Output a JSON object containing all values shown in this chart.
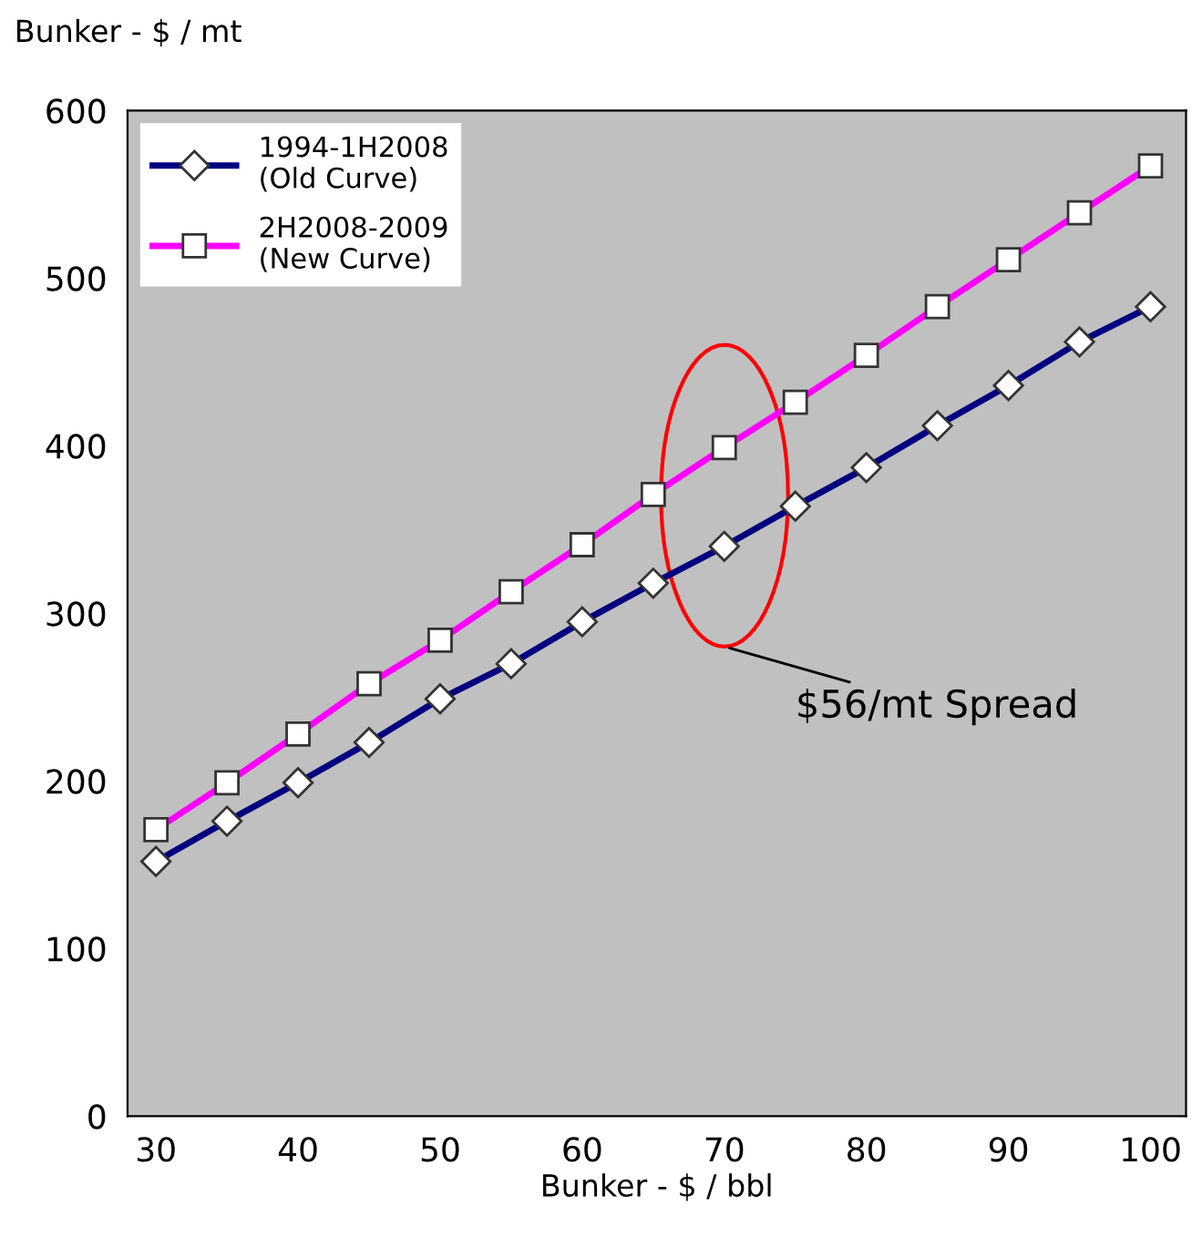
{
  "chart_data": {
    "type": "line",
    "xlabel": "Bunker - $ / bbl",
    "ylabel": "Bunker - $ / mt",
    "x": [
      30,
      35,
      40,
      45,
      50,
      55,
      60,
      65,
      70,
      75,
      80,
      85,
      90,
      95,
      100
    ],
    "series": [
      {
        "name": "1994-1H2008\n(Old Curve)",
        "color": "#000080",
        "marker": "diamond",
        "values": [
          152,
          176,
          199,
          223,
          249,
          270,
          295,
          318,
          340,
          364,
          387,
          412,
          436,
          462,
          483
        ]
      },
      {
        "name": "2H2008-2009\n(New Curve)",
        "color": "#ff00ff",
        "marker": "square",
        "values": [
          171,
          199,
          228,
          258,
          284,
          313,
          341,
          371,
          399,
          426,
          454,
          483,
          511,
          539,
          567
        ]
      }
    ],
    "xlim": [
      28,
      102.5
    ],
    "xticks": [
      30,
      40,
      50,
      60,
      70,
      80,
      90,
      100
    ],
    "ylim": [
      0,
      600
    ],
    "yticks": [
      0,
      100,
      200,
      300,
      400,
      500,
      600
    ],
    "grid": false,
    "legend": "top left",
    "line_style": "solid",
    "annotations": [
      "$56/mt Spread"
    ]
  }
}
